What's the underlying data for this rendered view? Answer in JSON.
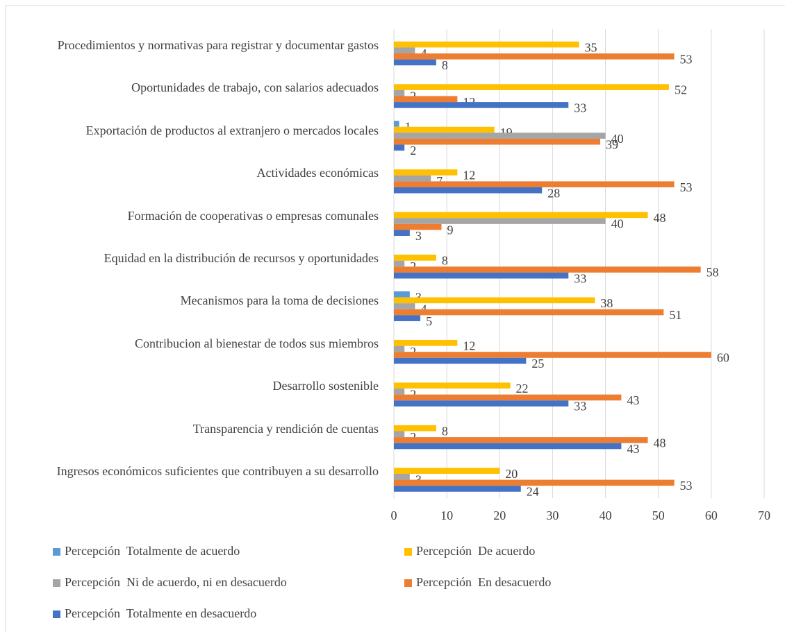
{
  "chart_data": {
    "type": "bar",
    "orientation": "horizontal",
    "categories": [
      "Procedimientos y normativas para registrar y documentar gastos",
      "Oportunidades de trabajo, con salarios adecuados",
      "Exportación de productos al extranjero o mercados locales",
      "Actividades económicas",
      "Formación de cooperativas o empresas comunales",
      "Equidad en la distribución de recursos y oportunidades",
      "Mecanismos para la toma de decisiones",
      "Contribucion al bienestar de todos sus miembros",
      "Desarrollo sostenible",
      "Transparencia y rendición de cuentas",
      "Ingresos económicos suficientes que contribuyen a su desarrollo"
    ],
    "series": [
      {
        "name": "Percepción  Totalmente de acuerdo",
        "color": "#5b9bd5",
        "values": [
          null,
          null,
          1,
          null,
          null,
          null,
          3,
          null,
          null,
          null,
          null
        ]
      },
      {
        "name": "Percepción  De acuerdo",
        "color": "#ffc000",
        "values": [
          35,
          52,
          19,
          12,
          48,
          8,
          38,
          12,
          22,
          8,
          20
        ]
      },
      {
        "name": "Percepción  Ni de acuerdo, ni en desacuerdo",
        "color": "#a5a5a5",
        "values": [
          4,
          2,
          40,
          7,
          40,
          2,
          4,
          2,
          2,
          2,
          3
        ]
      },
      {
        "name": "Percepción  En desacuerdo",
        "color": "#ed7d31",
        "values": [
          53,
          12,
          39,
          53,
          9,
          58,
          51,
          60,
          43,
          48,
          53
        ]
      },
      {
        "name": "Percepción  Totalmente en desacuerdo",
        "color": "#4472c4",
        "values": [
          8,
          33,
          2,
          28,
          3,
          33,
          5,
          25,
          33,
          43,
          24
        ]
      }
    ],
    "xlim": [
      0,
      70
    ],
    "xticks": [
      0,
      10,
      20,
      30,
      40,
      50,
      60,
      70
    ],
    "grid": true,
    "legend": "bottom"
  }
}
